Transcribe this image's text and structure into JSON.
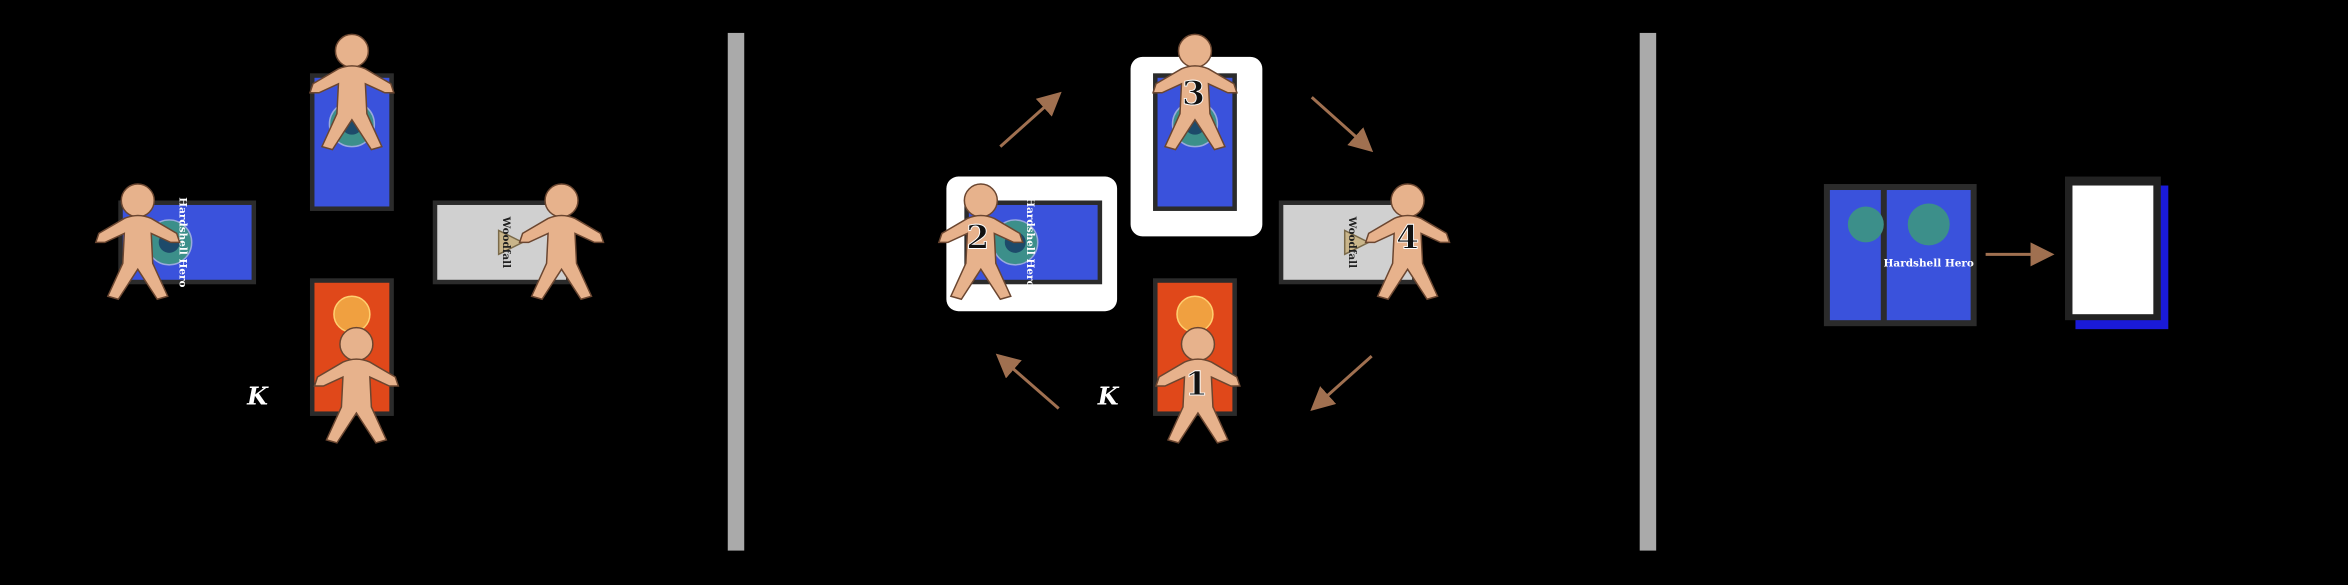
{
  "marks": {
    "first_player": "K"
  },
  "turn_order": [
    "1",
    "2",
    "3",
    "4"
  ],
  "cards": {
    "hero_title": "Hardshell Hero",
    "gray_title": "Woodfall"
  }
}
